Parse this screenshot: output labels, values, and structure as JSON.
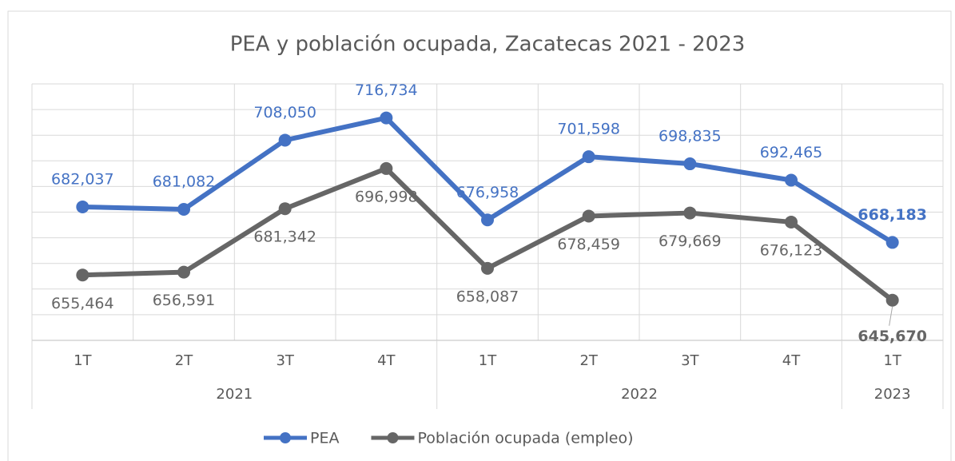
{
  "chart_data": {
    "type": "line",
    "title": "PEA y población ocupada, Zacatecas 2021 - 2023",
    "categories": [
      "1T",
      "2T",
      "3T",
      "4T",
      "1T",
      "2T",
      "3T",
      "4T",
      "1T"
    ],
    "groups": [
      {
        "label": "2021",
        "span": 4
      },
      {
        "label": "2022",
        "span": 4
      },
      {
        "label": "2023",
        "span": 1
      }
    ],
    "series": [
      {
        "name": "PEA",
        "color": "#4472c4",
        "values": [
          682037,
          681082,
          708050,
          716734,
          676958,
          701598,
          698835,
          692465,
          668183
        ],
        "value_labels": [
          "682,037",
          "681,082",
          "708,050",
          "716,734",
          "676,958",
          "701,598",
          "698,835",
          "692,465",
          "668,183"
        ]
      },
      {
        "name": "Población ocupada (empleo)",
        "color": "#666666",
        "values": [
          655464,
          656591,
          681342,
          696998,
          658087,
          678459,
          679669,
          676123,
          645670
        ],
        "value_labels": [
          "655,464",
          "656,591",
          "681,342",
          "696,998",
          "658,087",
          "678,459",
          "679,669",
          "676,123",
          "645,670"
        ]
      }
    ],
    "ylim": [
      630000,
      730000
    ],
    "yticks": [
      630000,
      640000,
      650000,
      660000,
      670000,
      680000,
      690000,
      700000,
      710000,
      720000,
      730000
    ],
    "grid": true,
    "legend": "bottom"
  }
}
